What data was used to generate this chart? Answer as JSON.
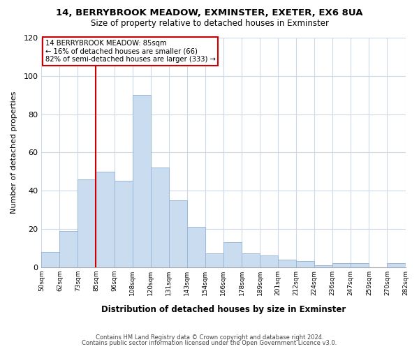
{
  "title": "14, BERRYBROOK MEADOW, EXMINSTER, EXETER, EX6 8UA",
  "subtitle": "Size of property relative to detached houses in Exminster",
  "xlabel": "Distribution of detached houses by size in Exminster",
  "ylabel": "Number of detached properties",
  "bar_labels": [
    "50sqm",
    "62sqm",
    "73sqm",
    "85sqm",
    "96sqm",
    "108sqm",
    "120sqm",
    "131sqm",
    "143sqm",
    "154sqm",
    "166sqm",
    "178sqm",
    "189sqm",
    "201sqm",
    "212sqm",
    "224sqm",
    "236sqm",
    "247sqm",
    "259sqm",
    "270sqm",
    "282sqm"
  ],
  "bar_values": [
    8,
    19,
    46,
    50,
    45,
    90,
    52,
    35,
    21,
    7,
    13,
    7,
    6,
    4,
    3,
    1,
    2,
    2,
    0,
    2
  ],
  "bar_color": "#c9dcf0",
  "bar_edge_color": "#9ab8d8",
  "vline_color": "#cc0000",
  "annotation_title": "14 BERRYBROOK MEADOW: 85sqm",
  "annotation_line1": "← 16% of detached houses are smaller (66)",
  "annotation_line2": "82% of semi-detached houses are larger (333) →",
  "annotation_box_color": "#ffffff",
  "annotation_box_edge_color": "#cc0000",
  "ylim": [
    0,
    120
  ],
  "yticks": [
    0,
    20,
    40,
    60,
    80,
    100,
    120
  ],
  "footer1": "Contains HM Land Registry data © Crown copyright and database right 2024.",
  "footer2": "Contains public sector information licensed under the Open Government Licence v3.0.",
  "background_color": "#ffffff",
  "grid_color": "#ccd9e8"
}
